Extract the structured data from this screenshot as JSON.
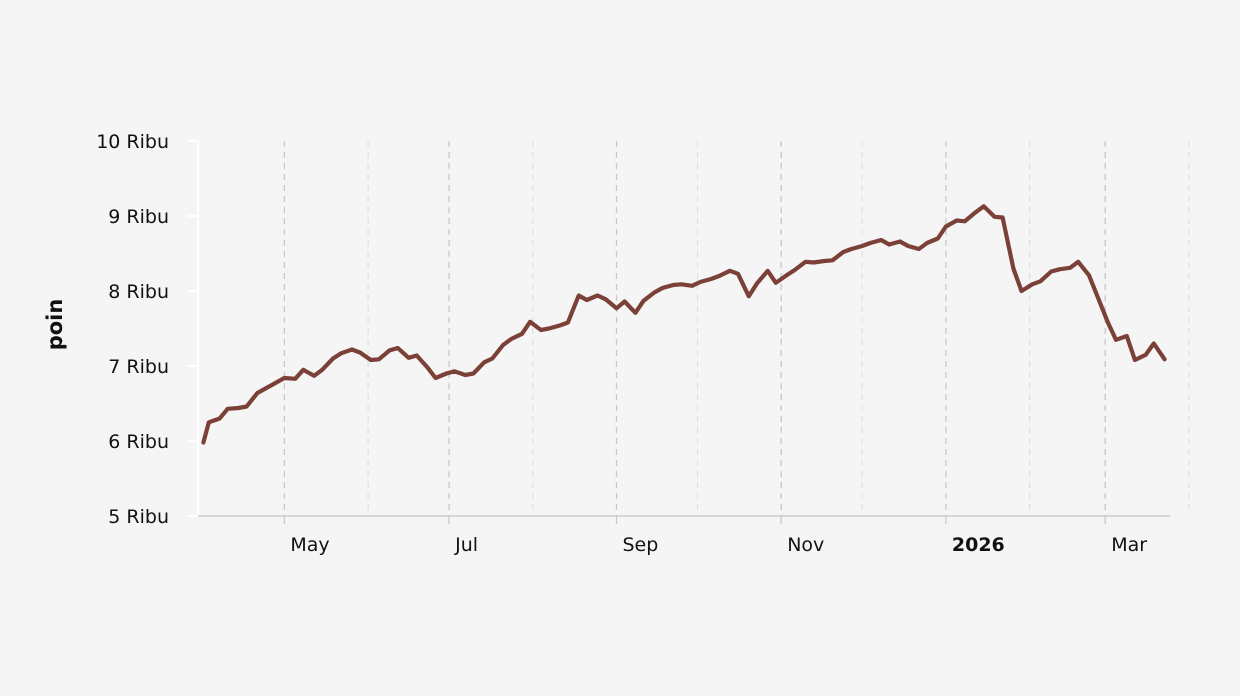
{
  "chart_data": {
    "type": "line",
    "title": "",
    "xlabel": "",
    "ylabel": "poin",
    "ylim": [
      5000,
      10000
    ],
    "xlim": [
      "2025-03-30",
      "2026-03-25"
    ],
    "y_ticks": [
      {
        "value": 5000,
        "label": "5 Ribu"
      },
      {
        "value": 6000,
        "label": "6 Ribu"
      },
      {
        "value": 7000,
        "label": "7 Ribu"
      },
      {
        "value": 8000,
        "label": "8 Ribu"
      },
      {
        "value": 9000,
        "label": "9 Ribu"
      },
      {
        "value": 10000,
        "label": "10 Ribu"
      }
    ],
    "x_ticks": [
      {
        "date": "2025-05-01",
        "label": "May",
        "bold": false
      },
      {
        "date": "2025-07-01",
        "label": "Jul",
        "bold": false
      },
      {
        "date": "2025-09-01",
        "label": "Sep",
        "bold": false
      },
      {
        "date": "2025-11-01",
        "label": "Nov",
        "bold": false
      },
      {
        "date": "2026-01-01",
        "label": "2026",
        "bold": true
      },
      {
        "date": "2026-03-01",
        "label": "Mar",
        "bold": false
      }
    ],
    "minor_gridlines": [
      "2025-06-01",
      "2025-08-01",
      "2025-10-01",
      "2025-12-01",
      "2026-02-01",
      "2026-04-01"
    ],
    "grid": true,
    "legend": "none",
    "line_color": "#7b4038",
    "series": [
      {
        "x": [
          "2025-04-01",
          "2025-04-03",
          "2025-04-07",
          "2025-04-10",
          "2025-04-14",
          "2025-04-17",
          "2025-04-21",
          "2025-04-24",
          "2025-04-28",
          "2025-05-01",
          "2025-05-05",
          "2025-05-08",
          "2025-05-12",
          "2025-05-15",
          "2025-05-19",
          "2025-05-22",
          "2025-05-26",
          "2025-05-29",
          "2025-06-02",
          "2025-06-05",
          "2025-06-09",
          "2025-06-12",
          "2025-06-16",
          "2025-06-19",
          "2025-06-23",
          "2025-06-26",
          "2025-06-30",
          "2025-07-03",
          "2025-07-07",
          "2025-07-10",
          "2025-07-14",
          "2025-07-17",
          "2025-07-21",
          "2025-07-24",
          "2025-07-28",
          "2025-07-31",
          "2025-08-04",
          "2025-08-07",
          "2025-08-11",
          "2025-08-14",
          "2025-08-18",
          "2025-08-21",
          "2025-08-25",
          "2025-08-28",
          "2025-09-01",
          "2025-09-04",
          "2025-09-08",
          "2025-09-11",
          "2025-09-15",
          "2025-09-18",
          "2025-09-22",
          "2025-09-25",
          "2025-09-29",
          "2025-10-02",
          "2025-10-06",
          "2025-10-09",
          "2025-10-13",
          "2025-10-16",
          "2025-10-20",
          "2025-10-23",
          "2025-10-27",
          "2025-10-30",
          "2025-11-03",
          "2025-11-06",
          "2025-11-10",
          "2025-11-13",
          "2025-11-17",
          "2025-11-20",
          "2025-11-24",
          "2025-11-27",
          "2025-12-01",
          "2025-12-04",
          "2025-12-08",
          "2025-12-11",
          "2025-12-15",
          "2025-12-18",
          "2025-12-22",
          "2025-12-25",
          "2025-12-29",
          "2026-01-01",
          "2026-01-05",
          "2026-01-08",
          "2026-01-12",
          "2026-01-15",
          "2026-01-19",
          "2026-01-22",
          "2026-01-26",
          "2026-01-29",
          "2026-02-02",
          "2026-02-05",
          "2026-02-09",
          "2026-02-12",
          "2026-02-16",
          "2026-02-19",
          "2026-02-23",
          "2026-02-26",
          "2026-03-02",
          "2026-03-05",
          "2026-03-09",
          "2026-03-12",
          "2026-03-16",
          "2026-03-19",
          "2026-03-23"
        ],
        "y": [
          5980,
          6250,
          6300,
          6430,
          6440,
          6460,
          6640,
          6700,
          6780,
          6840,
          6830,
          6950,
          6870,
          6950,
          7100,
          7170,
          7220,
          7180,
          7080,
          7090,
          7210,
          7240,
          7110,
          7140,
          6980,
          6840,
          6900,
          6930,
          6880,
          6900,
          7050,
          7100,
          7280,
          7360,
          7430,
          7590,
          7480,
          7500,
          7540,
          7580,
          7940,
          7880,
          7940,
          7890,
          7770,
          7860,
          7710,
          7870,
          7980,
          8040,
          8080,
          8090,
          8070,
          8120,
          8160,
          8200,
          8270,
          8230,
          7930,
          8100,
          8270,
          8110,
          8210,
          8280,
          8390,
          8380,
          8400,
          8410,
          8520,
          8560,
          8600,
          8640,
          8680,
          8620,
          8660,
          8600,
          8560,
          8640,
          8700,
          8860,
          8940,
          8930,
          9050,
          9130,
          8990,
          8980,
          8300,
          8000,
          8090,
          8130,
          8260,
          8290,
          8310,
          8390,
          8210,
          7940,
          7580,
          7350,
          7400,
          7080,
          7150,
          7300,
          7090
        ]
      }
    ]
  }
}
